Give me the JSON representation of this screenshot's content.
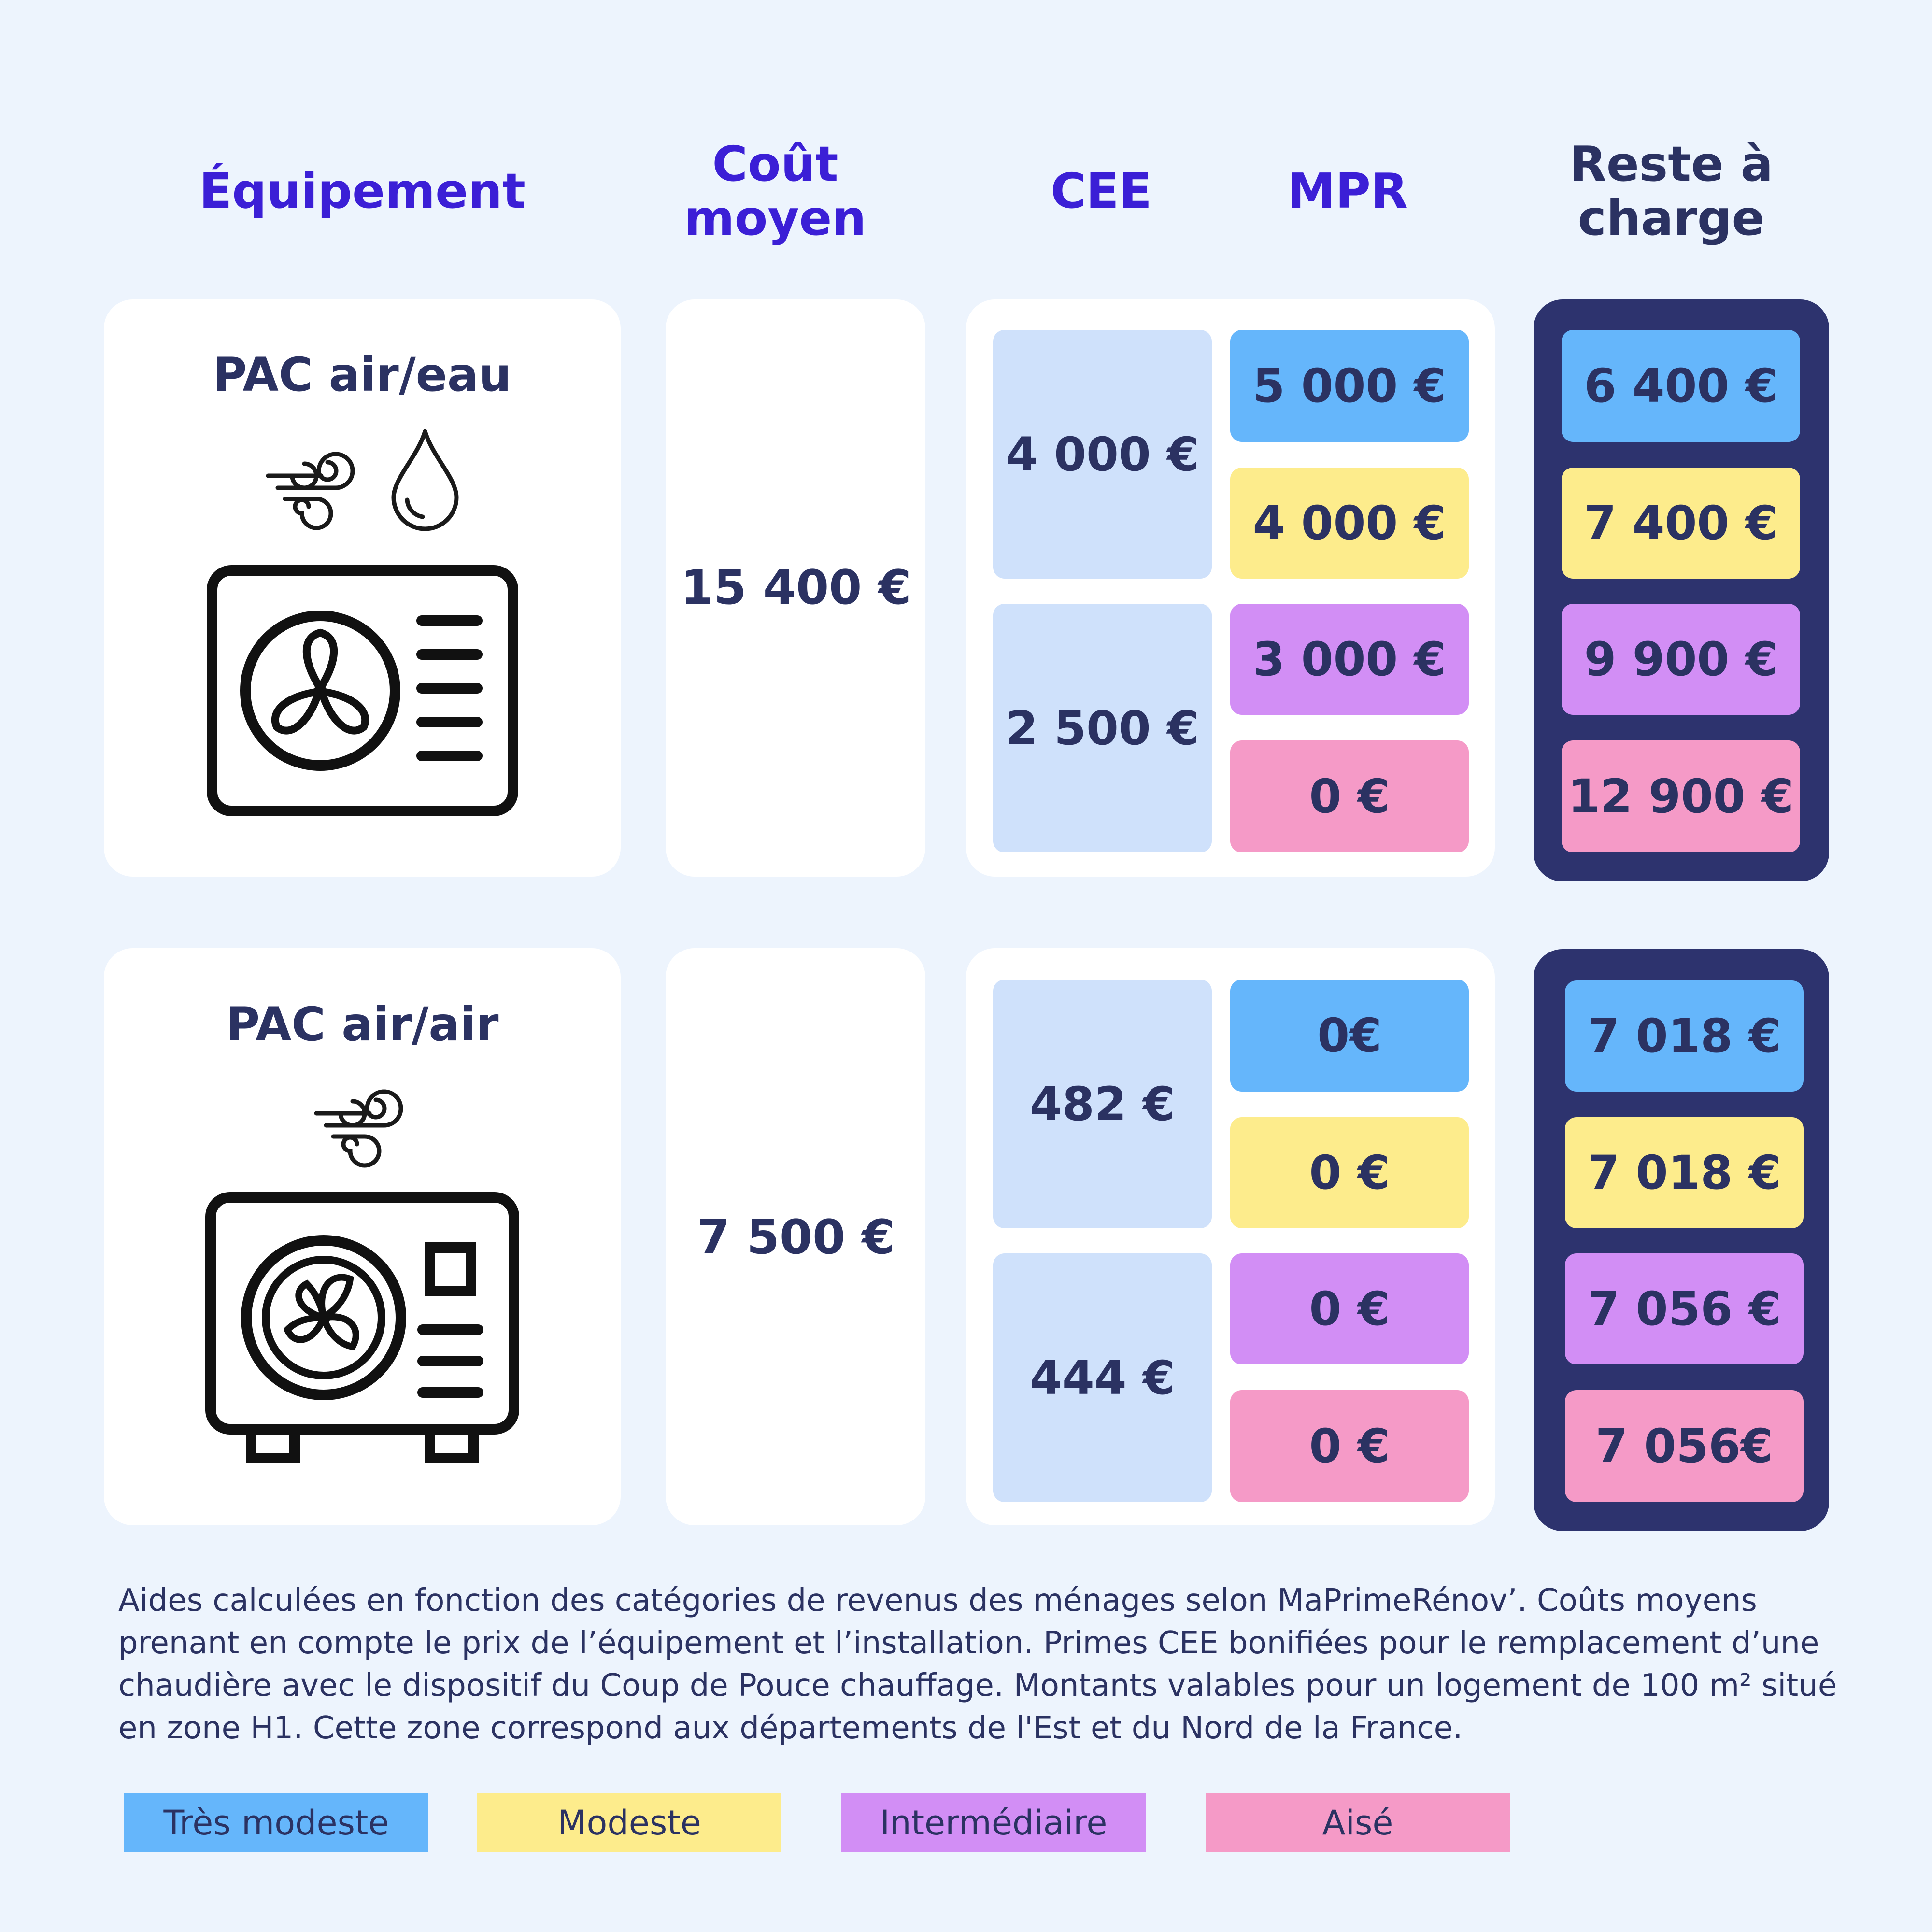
{
  "headers": {
    "equipement": "Équipement",
    "cout_line1": "Coût",
    "cout_line2": "moyen",
    "cee": "CEE",
    "mpr": "MPR",
    "reste_line1": "Reste à",
    "reste_line2": "charge"
  },
  "rows": [
    {
      "title": "PAC air/eau",
      "icons": [
        "wind-icon",
        "water-drop-icon",
        "heat-pump-unit-icon"
      ],
      "cost": "15 400 €",
      "cee": [
        "4 000 €",
        "2 500 €"
      ],
      "mpr": [
        "5 000 €",
        "4 000 €",
        "3 000 €",
        "0 €"
      ],
      "reste": [
        "6 400 €",
        "7 400 €",
        "9 900 €",
        "12 900 €"
      ]
    },
    {
      "title": "PAC air/air",
      "icons": [
        "wind-icon",
        "air-conditioner-unit-icon"
      ],
      "cost": "7 500 €",
      "cee": [
        "482 €",
        "444 €"
      ],
      "mpr": [
        "0€",
        "0 €",
        "0 €",
        "0 €"
      ],
      "reste": [
        "7 018 €",
        "7 018 €",
        "7 056 €",
        "7 056€"
      ]
    }
  ],
  "note": "Aides calculées en fonction des catégories de revenus des ménages selon MaPrimeRénov’. Coûts moyens prenant en compte le prix de l’équipement et l’installation. Primes CEE bonifiées pour le remplacement d’une chaudière avec le dispositif du Coup de Pouce chauffage. Montants valables pour un logement de 100 m² situé en zone H1. Cette zone correspond aux départements de l'Est et du Nord de la France.",
  "legend": [
    {
      "label": "Très modeste",
      "color": "#65b6fb"
    },
    {
      "label": "Modeste",
      "color": "#fdec8c"
    },
    {
      "label": "Intermédiaire",
      "color": "#d28ef5"
    },
    {
      "label": "Aisé",
      "color": "#f59ac7"
    }
  ],
  "colors": {
    "background": "#edf4fd",
    "header_blue": "#3b1fd6",
    "navy": "#2b3262",
    "dark_panel": "#2d336e",
    "cee_cell": "#cfe1fb"
  }
}
